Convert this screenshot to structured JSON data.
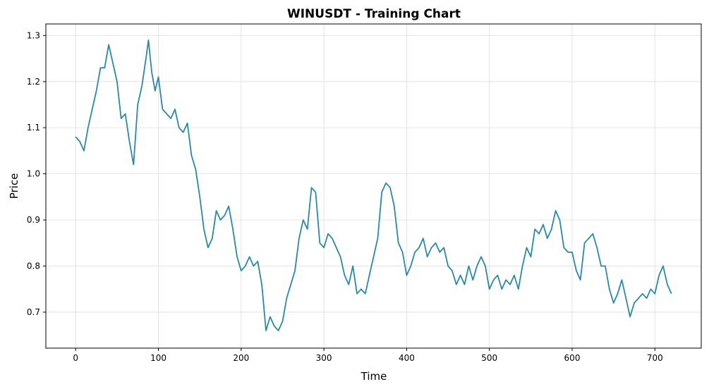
{
  "chart_data": {
    "type": "line",
    "title": "WINUSDT - Training Chart",
    "xlabel": "Time",
    "ylabel": "Price",
    "xlim": [
      -36,
      756
    ],
    "ylim": [
      0.622,
      1.325
    ],
    "xticks": [
      0,
      100,
      200,
      300,
      400,
      500,
      600,
      700
    ],
    "yticks": [
      0.7,
      0.8,
      0.9,
      1.0,
      1.1,
      1.2,
      1.3
    ],
    "ytick_labels": [
      "0.7",
      "0.8",
      "0.9",
      "1.0",
      "1.1",
      "1.2",
      "1.3"
    ],
    "grid": true,
    "line_color": "#2a88a8",
    "series": [
      {
        "x": [
          0,
          5,
          10,
          15,
          20,
          25,
          30,
          35,
          40,
          45,
          50,
          55,
          60,
          65,
          70,
          75,
          80,
          85,
          88,
          92,
          96,
          100,
          105,
          110,
          115,
          120,
          125,
          130,
          135,
          140,
          145,
          150,
          155,
          160,
          165,
          170,
          175,
          180,
          185,
          190,
          195,
          200,
          205,
          210,
          215,
          220,
          225,
          230,
          235,
          240,
          245,
          250,
          255,
          260,
          265,
          270,
          275,
          280,
          285,
          290,
          295,
          300,
          305,
          310,
          315,
          320,
          325,
          330,
          335,
          340,
          345,
          350,
          355,
          360,
          365,
          370,
          375,
          380,
          385,
          390,
          395,
          400,
          405,
          410,
          415,
          420,
          425,
          430,
          435,
          440,
          445,
          450,
          455,
          460,
          465,
          470,
          475,
          480,
          485,
          490,
          495,
          500,
          505,
          510,
          515,
          520,
          525,
          530,
          535,
          540,
          545,
          550,
          555,
          560,
          565,
          570,
          575,
          580,
          585,
          590,
          595,
          600,
          605,
          610,
          615,
          620,
          625,
          630,
          635,
          640,
          645,
          650,
          655,
          660,
          665,
          670,
          675,
          680,
          685,
          690,
          695,
          700,
          705,
          710,
          715,
          720
        ],
        "values": [
          1.08,
          1.07,
          1.05,
          1.1,
          1.14,
          1.18,
          1.23,
          1.23,
          1.28,
          1.24,
          1.2,
          1.12,
          1.13,
          1.07,
          1.02,
          1.15,
          1.19,
          1.25,
          1.29,
          1.22,
          1.18,
          1.21,
          1.14,
          1.13,
          1.12,
          1.14,
          1.1,
          1.09,
          1.11,
          1.04,
          1.01,
          0.95,
          0.88,
          0.84,
          0.86,
          0.92,
          0.9,
          0.91,
          0.93,
          0.88,
          0.82,
          0.79,
          0.8,
          0.82,
          0.8,
          0.81,
          0.76,
          0.66,
          0.69,
          0.67,
          0.66,
          0.68,
          0.73,
          0.76,
          0.79,
          0.86,
          0.9,
          0.88,
          0.97,
          0.96,
          0.85,
          0.84,
          0.87,
          0.86,
          0.84,
          0.82,
          0.78,
          0.76,
          0.8,
          0.74,
          0.75,
          0.74,
          0.78,
          0.82,
          0.86,
          0.96,
          0.98,
          0.97,
          0.93,
          0.85,
          0.83,
          0.78,
          0.8,
          0.83,
          0.84,
          0.86,
          0.82,
          0.84,
          0.85,
          0.83,
          0.84,
          0.8,
          0.79,
          0.76,
          0.78,
          0.76,
          0.8,
          0.77,
          0.8,
          0.82,
          0.8,
          0.75,
          0.77,
          0.78,
          0.75,
          0.77,
          0.76,
          0.78,
          0.75,
          0.8,
          0.84,
          0.82,
          0.88,
          0.87,
          0.89,
          0.86,
          0.88,
          0.92,
          0.9,
          0.84,
          0.83,
          0.83,
          0.79,
          0.77,
          0.85,
          0.86,
          0.87,
          0.84,
          0.8,
          0.8,
          0.75,
          0.72,
          0.74,
          0.77,
          0.73,
          0.69,
          0.72,
          0.73,
          0.74,
          0.73,
          0.75,
          0.74,
          0.78,
          0.8,
          0.76,
          0.74
        ]
      }
    ]
  }
}
